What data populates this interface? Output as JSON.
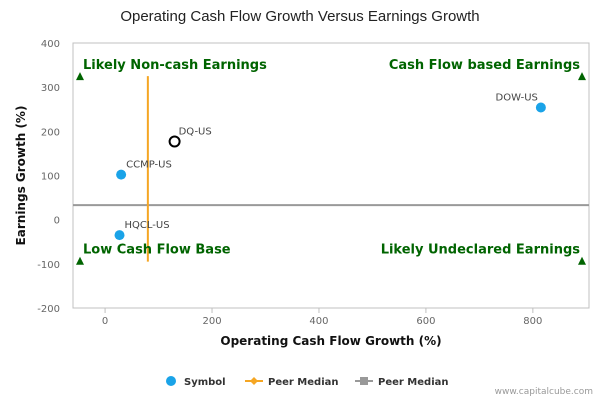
{
  "chart_data": {
    "type": "scatter",
    "title": "Operating Cash Flow Growth Versus Earnings Growth",
    "xlabel": "Operating Cash Flow Growth (%)",
    "ylabel": "Earnings Growth (%)",
    "xlim": [
      -60,
      905
    ],
    "ylim": [
      -200,
      400
    ],
    "xticks": [
      0,
      200,
      400,
      600,
      800
    ],
    "yticks": [
      -200,
      -100,
      0,
      100,
      200,
      300,
      400
    ],
    "tick_labels_x": [
      "0",
      "200",
      "400",
      "600",
      "800"
    ],
    "tick_labels_y": [
      "-200",
      "-100",
      "0",
      "100",
      "200",
      "300",
      "400"
    ],
    "points": [
      {
        "label": "DOW-US",
        "x": 815,
        "y": 254,
        "style": "filled"
      },
      {
        "label": "DQ-US",
        "x": 130,
        "y": 177,
        "style": "hollow"
      },
      {
        "label": "CCMP-US",
        "x": 30,
        "y": 102,
        "style": "filled"
      },
      {
        "label": "HQCL-US",
        "x": 27,
        "y": -35,
        "style": "filled"
      }
    ],
    "peer_median_x": 80,
    "peer_median_x_range": [
      -95,
      325
    ],
    "peer_median_y": 33,
    "quadrant_labels": {
      "top_left": "Likely Non-cash Earnings",
      "top_right": "Cash Flow based Earnings",
      "bottom_left": "Low Cash Flow Base",
      "bottom_right": "Likely Undeclared Earnings"
    },
    "legend": [
      {
        "label": "Symbol",
        "marker": "circle"
      },
      {
        "label": "Peer Median",
        "marker": "diamond-line"
      },
      {
        "label": "Peer Median",
        "marker": "square-line"
      }
    ],
    "legend_position": "bottom-center",
    "grid": false,
    "credit": "www.capitalcube.com"
  },
  "colors": {
    "symbol": "#1aa3e8",
    "peer_median_vertical": "#f5a623",
    "peer_median_horizontal": "#999999",
    "quadrant": "#006400",
    "axis": "#c0c0c0"
  }
}
